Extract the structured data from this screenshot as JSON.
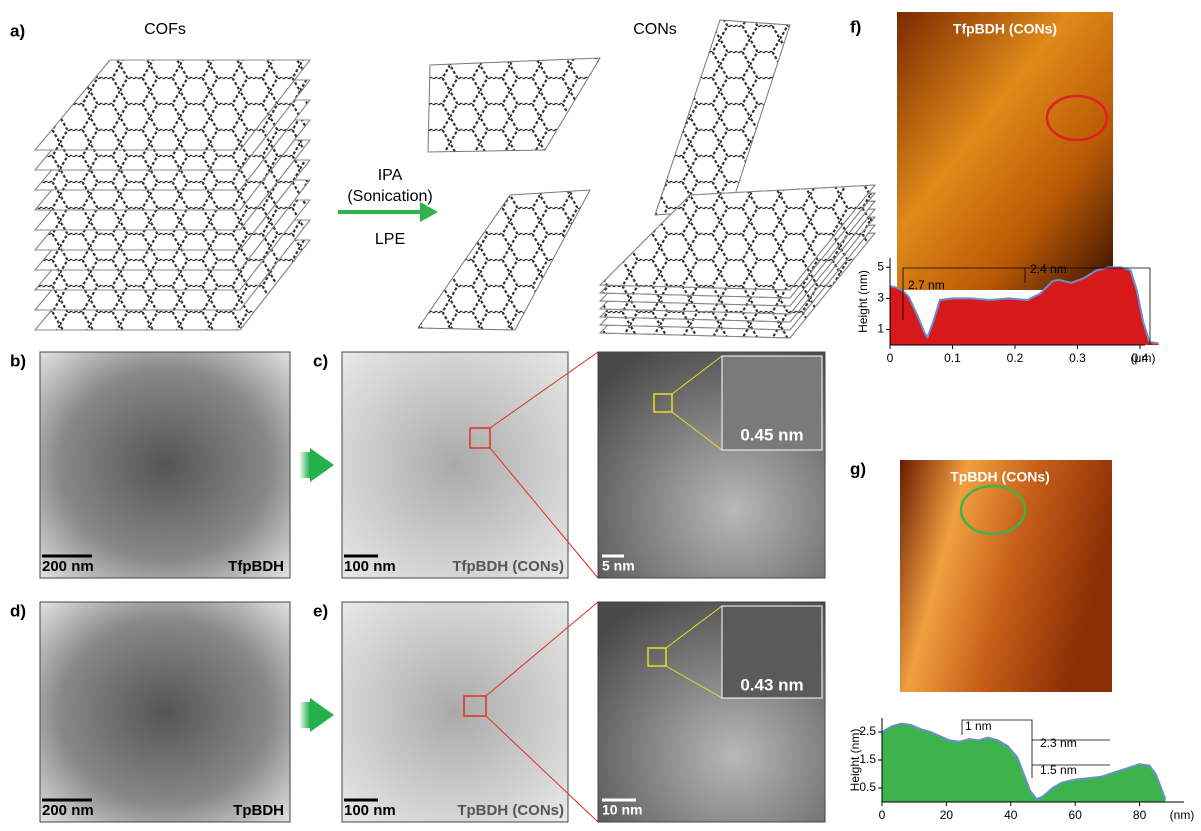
{
  "panel_a": {
    "label": "a)",
    "left_title": "COFs",
    "right_title": "CONs",
    "arrow_top": "IPA",
    "arrow_mid": "(Sonication)",
    "arrow_bottom": "LPE"
  },
  "panel_b": {
    "label": "b)",
    "scale": "200 nm",
    "sample": "TfpBDH"
  },
  "panel_c": {
    "label": "c)",
    "scale": "100 nm",
    "sample": "TfpBDH (CONs)",
    "hr_scale": "5 nm",
    "spacing": "0.45 nm"
  },
  "panel_d": {
    "label": "d)",
    "scale": "200 nm",
    "sample": "TpBDH"
  },
  "panel_e": {
    "label": "e)",
    "scale": "100 nm",
    "sample": "TpBDH (CONs)",
    "hr_scale": "10 nm",
    "spacing": "0.43 nm"
  },
  "panel_f": {
    "label": "f)",
    "sample": "TfpBDH (CONs)"
  },
  "panel_g": {
    "label": "g)",
    "sample": "TpBDH (CONs)"
  },
  "chart_data": [
    {
      "type": "area",
      "y_label": "Height (nm)",
      "x_label": "(μm)",
      "color": "#d7191c",
      "line_color": "#6b8fcc",
      "x": [
        0,
        0.01,
        0.02,
        0.03,
        0.045,
        0.055,
        0.06,
        0.07,
        0.08,
        0.1,
        0.13,
        0.16,
        0.19,
        0.22,
        0.24,
        0.26,
        0.27,
        0.29,
        0.31,
        0.33,
        0.35,
        0.37,
        0.385,
        0.395,
        0.405,
        0.415,
        0.43
      ],
      "values": [
        3.8,
        3.7,
        3.5,
        3.1,
        1.8,
        0.8,
        0.5,
        1.6,
        2.9,
        3.0,
        3.0,
        2.9,
        3.0,
        2.9,
        3.3,
        4.1,
        4.2,
        4.0,
        4.3,
        4.8,
        5.0,
        5.0,
        4.8,
        3.5,
        1.5,
        0.2,
        0.1
      ],
      "xlim": [
        0,
        0.44
      ],
      "ylim": [
        0,
        5.6
      ],
      "xticks": [
        0,
        0.1,
        0.2,
        0.3,
        0.4
      ],
      "yticks": [
        1,
        3,
        5
      ],
      "annotations": [
        "2.7 nm",
        "2.4 nm"
      ]
    },
    {
      "type": "area",
      "y_label": "Height (nm)",
      "x_label": "(nm)",
      "color": "#3cb44b",
      "line_color": "#6b8fcc",
      "x": [
        0,
        3,
        6,
        9,
        12,
        15,
        18,
        21,
        24,
        27,
        30,
        33,
        36,
        39,
        42,
        44,
        46,
        48,
        50,
        53,
        56,
        60,
        64,
        68,
        72,
        76,
        80,
        83,
        85,
        87,
        88
      ],
      "values": [
        2.5,
        2.7,
        2.8,
        2.75,
        2.6,
        2.5,
        2.35,
        2.2,
        2.15,
        2.25,
        2.2,
        2.3,
        2.2,
        2.0,
        1.6,
        1.0,
        0.4,
        0.1,
        0.2,
        0.5,
        0.7,
        0.8,
        0.85,
        0.9,
        1.05,
        1.2,
        1.35,
        1.3,
        1.0,
        0.4,
        0.1
      ],
      "xlim": [
        0,
        100
      ],
      "ylim": [
        0,
        3.0
      ],
      "xticks": [
        0,
        20,
        40,
        60,
        80
      ],
      "yticks": [
        0.5,
        1.5,
        2.5
      ],
      "annotations": [
        "1 nm",
        "2.3 nm",
        "1.5 nm"
      ]
    }
  ]
}
